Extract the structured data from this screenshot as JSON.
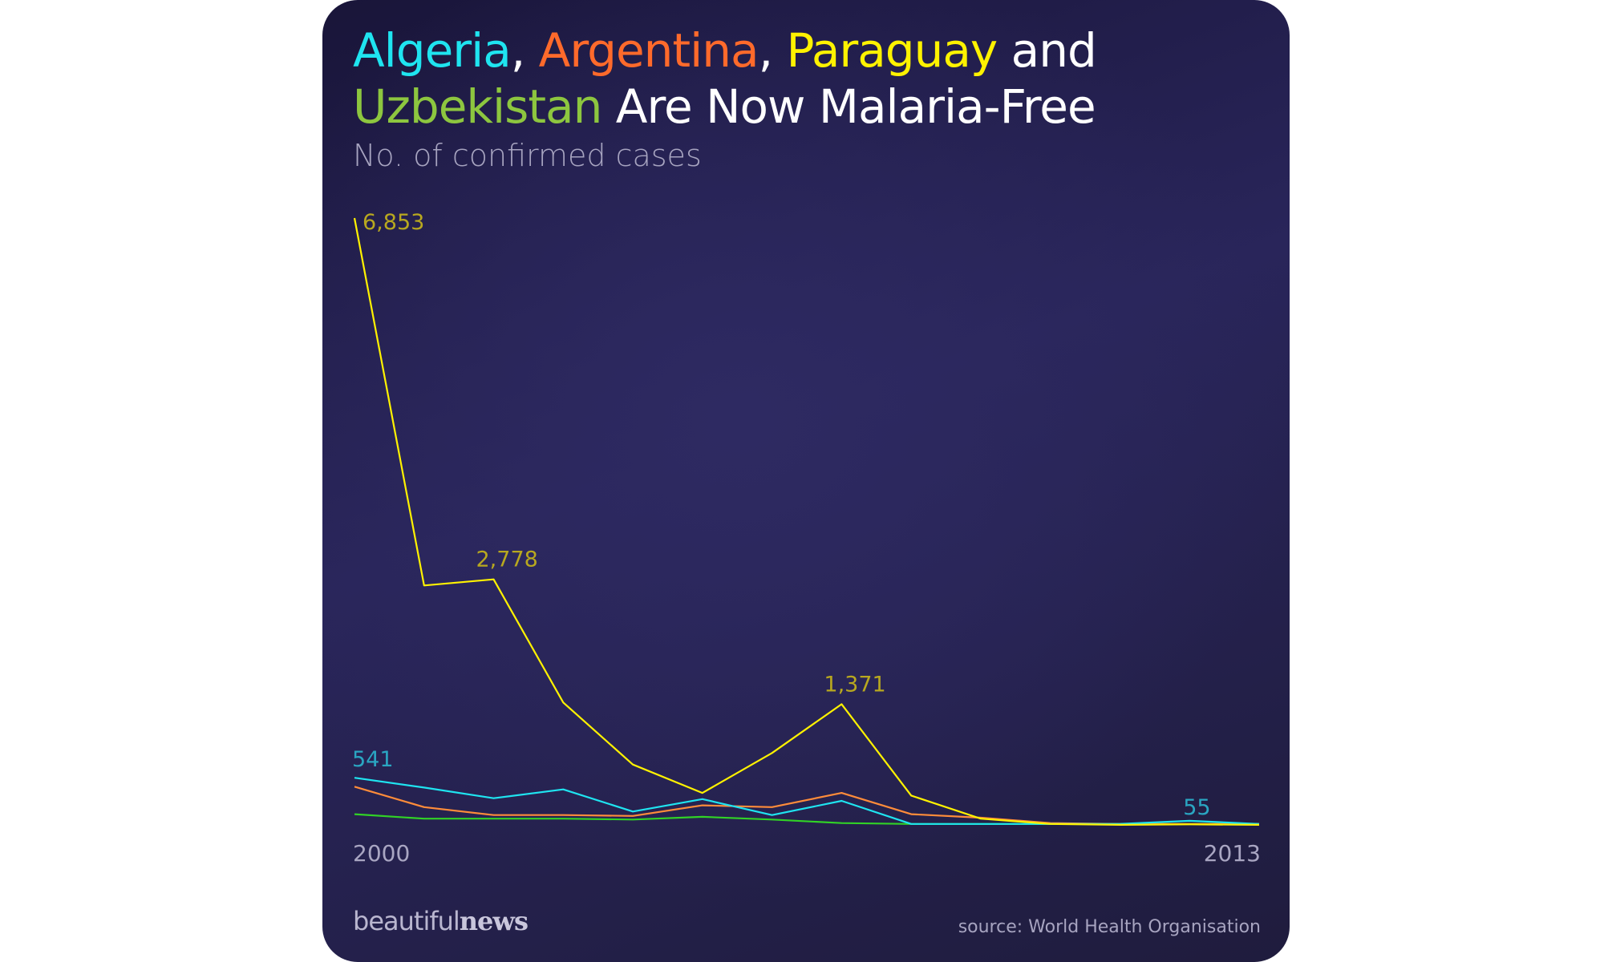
{
  "title": {
    "w1": "Algeria",
    "sep1": ", ",
    "w2": "Argentina",
    "sep2": ", ",
    "w3": "Paraguay",
    "w4": " and",
    "w5": "Uzbekistan",
    "w6": " Are Now Malaria-Free",
    "colors": {
      "algeria": "#1fe4f0",
      "argentina": "#ff6a2b",
      "paraguay": "#fff200",
      "uzbekistan": "#8dc63f"
    }
  },
  "subtitle": "No. of confirmed cases",
  "footer": {
    "logo_light": "beautiful",
    "logo_bold": "news",
    "source": "source: World Health Organisation"
  },
  "chart_data": {
    "type": "line",
    "x": [
      2000,
      2001,
      2002,
      2003,
      2004,
      2005,
      2006,
      2007,
      2008,
      2009,
      2010,
      2011,
      2012,
      2013
    ],
    "x_tick_labels": [
      "2000",
      "2013"
    ],
    "ylim": [
      0,
      6853
    ],
    "grid": false,
    "legend": "none (series named in title colors)",
    "series": [
      {
        "name": "Paraguay",
        "color": "#fff200",
        "values": [
          6853,
          2710,
          2778,
          1390,
          690,
          370,
          820,
          1371,
          340,
          80,
          20,
          10,
          15,
          10
        ]
      },
      {
        "name": "Algeria",
        "color": "#1fe4f0",
        "values": [
          541,
          430,
          310,
          410,
          160,
          300,
          120,
          280,
          20,
          20,
          20,
          20,
          55,
          20
        ]
      },
      {
        "name": "Argentina",
        "color": "#ff8c3a",
        "values": [
          440,
          210,
          120,
          120,
          110,
          230,
          210,
          370,
          130,
          90,
          30,
          20,
          20,
          20
        ]
      },
      {
        "name": "Uzbekistan",
        "color": "#31d226",
        "values": [
          130,
          80,
          80,
          80,
          70,
          100,
          70,
          30,
          20,
          20,
          20,
          20,
          20,
          20
        ]
      }
    ],
    "annotations": [
      {
        "series": "Paraguay",
        "x": 2000,
        "y": 6853,
        "text": "6,853",
        "color": "#b8a81f"
      },
      {
        "series": "Paraguay",
        "x": 2002,
        "y": 2778,
        "text": "2,778",
        "color": "#b8a81f"
      },
      {
        "series": "Paraguay",
        "x": 2007,
        "y": 1371,
        "text": "1,371",
        "color": "#b8a81f"
      },
      {
        "series": "Algeria",
        "x": 2000,
        "y": 541,
        "text": "541",
        "color": "#2aa6c2"
      },
      {
        "series": "Algeria",
        "x": 2012,
        "y": 55,
        "text": "55",
        "color": "#2aa6c2"
      }
    ]
  }
}
